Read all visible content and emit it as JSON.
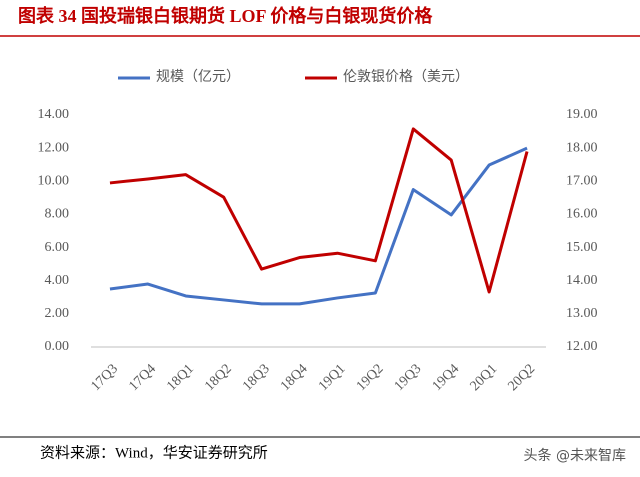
{
  "chart_data": {
    "type": "line",
    "title": "图表 34 国投瑞银白银期货 LOF 价格与白银现货价格",
    "source": "资料来源：Wind，华安证券研究所",
    "watermark": "头条 @未来智库",
    "categories": [
      "17Q3",
      "17Q4",
      "18Q1",
      "18Q2",
      "18Q3",
      "18Q4",
      "19Q1",
      "19Q2",
      "19Q3",
      "19Q4",
      "20Q1",
      "20Q2"
    ],
    "series": [
      {
        "name": "规模（亿元）",
        "color": "#4472c4",
        "values": [
          3.5,
          3.8,
          3.08,
          2.84,
          2.6,
          2.6,
          2.96,
          3.26,
          9.5,
          7.97,
          10.98,
          12.0
        ]
      },
      {
        "name": "伦敦银价格（美元）",
        "color": "#c00000",
        "axis": "y2",
        "values": [
          16.95,
          17.07,
          17.2,
          16.52,
          14.35,
          14.7,
          14.83,
          14.6,
          18.58,
          17.64,
          13.66,
          17.9
        ]
      }
    ],
    "ylim": [
      0,
      14
    ],
    "yticks": [
      {
        "value": 0,
        "label": "0.00"
      },
      {
        "value": 2,
        "label": "2.00"
      },
      {
        "value": 4,
        "label": "4.00"
      },
      {
        "value": 6,
        "label": "6.00"
      },
      {
        "value": 8,
        "label": "8.00"
      },
      {
        "value": 10,
        "label": "10.00"
      },
      {
        "value": 12,
        "label": "12.00"
      },
      {
        "value": 14,
        "label": "14.00"
      }
    ],
    "y2lim": [
      12,
      19
    ],
    "y2ticks": [
      {
        "value": 12,
        "label": "12.00"
      },
      {
        "value": 13,
        "label": "13.00"
      },
      {
        "value": 14,
        "label": "14.00"
      },
      {
        "value": 15,
        "label": "15.00"
      },
      {
        "value": 16,
        "label": "16.00"
      },
      {
        "value": 17,
        "label": "17.00"
      },
      {
        "value": 18,
        "label": "18.00"
      },
      {
        "value": 19,
        "label": "19.00"
      }
    ],
    "grid": false,
    "legend": "top"
  }
}
